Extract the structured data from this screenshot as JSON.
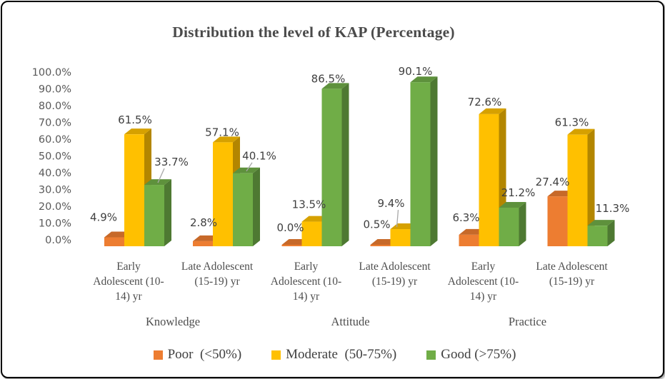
{
  "title": "Distribution the level of KAP (Percentage)",
  "legend": {
    "items": [
      {
        "label": "Poor  (<50%)",
        "color": "#ED7D31"
      },
      {
        "label": "Moderate  (50-75%)",
        "color": "#FFC000"
      },
      {
        "label": "Good (>75%)",
        "color": "#70AD47"
      }
    ]
  },
  "chart_data": {
    "type": "bar",
    "style": "3d-clustered-column",
    "title": "Distribution the level of KAP (Percentage)",
    "xlabel": "",
    "ylabel": "",
    "ylim": [
      0,
      100
    ],
    "grid": false,
    "legend_position": "bottom",
    "y_tick_labels": [
      "0.0%",
      "10.0%",
      "20.0%",
      "30.0%",
      "40.0%",
      "50.0%",
      "60.0%",
      "70.0%",
      "80.0%",
      "90.0%",
      "100.0%"
    ],
    "categories": [
      "Early Adolescent (10-14) yr",
      "Late Adolescent (15-19) yr",
      "Early Adolescent (10-14) yr",
      "Late Adolescent (15-19) yr",
      "Early Adolescent (10-14) yr",
      "Late Adolescent (15-19) yr"
    ],
    "category_groups": [
      {
        "label": "Knowledge",
        "groups": [
          0,
          1
        ]
      },
      {
        "label": "Attitude",
        "groups": [
          2,
          3
        ]
      },
      {
        "label": "Practice",
        "groups": [
          4,
          5
        ]
      }
    ],
    "series": [
      {
        "name": "Poor (<50%)",
        "key": "poor",
        "color": "#ED7D31",
        "values": [
          4.9,
          2.8,
          0.0,
          0.5,
          6.3,
          27.4
        ],
        "labels": [
          "4.9%",
          "2.8%",
          "0.0%",
          "0.5%",
          "6.3%",
          "27.4%"
        ],
        "label_offsets": [
          [
            -15,
            28,
            0
          ],
          [
            1,
            26,
            0
          ],
          [
            -2,
            26,
            0
          ],
          [
            -5,
            29,
            0
          ],
          [
            -4,
            24,
            0
          ],
          [
            -7,
            20,
            0
          ]
        ]
      },
      {
        "name": "Moderate (50-75%)",
        "key": "moderate",
        "color": "#FFC000",
        "values": [
          61.5,
          57.1,
          13.5,
          9.4,
          72.6,
          61.3
        ],
        "labels": [
          "61.5%",
          "57.1%",
          "13.5%",
          "9.4%",
          "72.6%",
          "61.3%"
        ],
        "label_offsets": [
          [
            1,
            20,
            0
          ],
          [
            -1,
            14,
            0
          ],
          [
            -4,
            24,
            0
          ],
          [
            -13,
            36,
            1
          ],
          [
            -6,
            17,
            0
          ],
          [
            -8,
            17,
            0
          ]
        ]
      },
      {
        "name": "Good (>75%)",
        "key": "good",
        "color": "#70AD47",
        "values": [
          33.7,
          40.1,
          86.5,
          90.1,
          21.2,
          11.3
        ],
        "labels": [
          "33.7%",
          "40.1%",
          "86.5%",
          "90.1%",
          "21.2%",
          "11.3%"
        ],
        "label_offsets": [
          [
            24,
            32,
            1
          ],
          [
            23,
            24,
            1
          ],
          [
            -5,
            14,
            0
          ],
          [
            -7,
            15,
            0
          ],
          [
            13,
            21,
            0
          ],
          [
            21,
            24,
            0
          ]
        ]
      }
    ]
  }
}
